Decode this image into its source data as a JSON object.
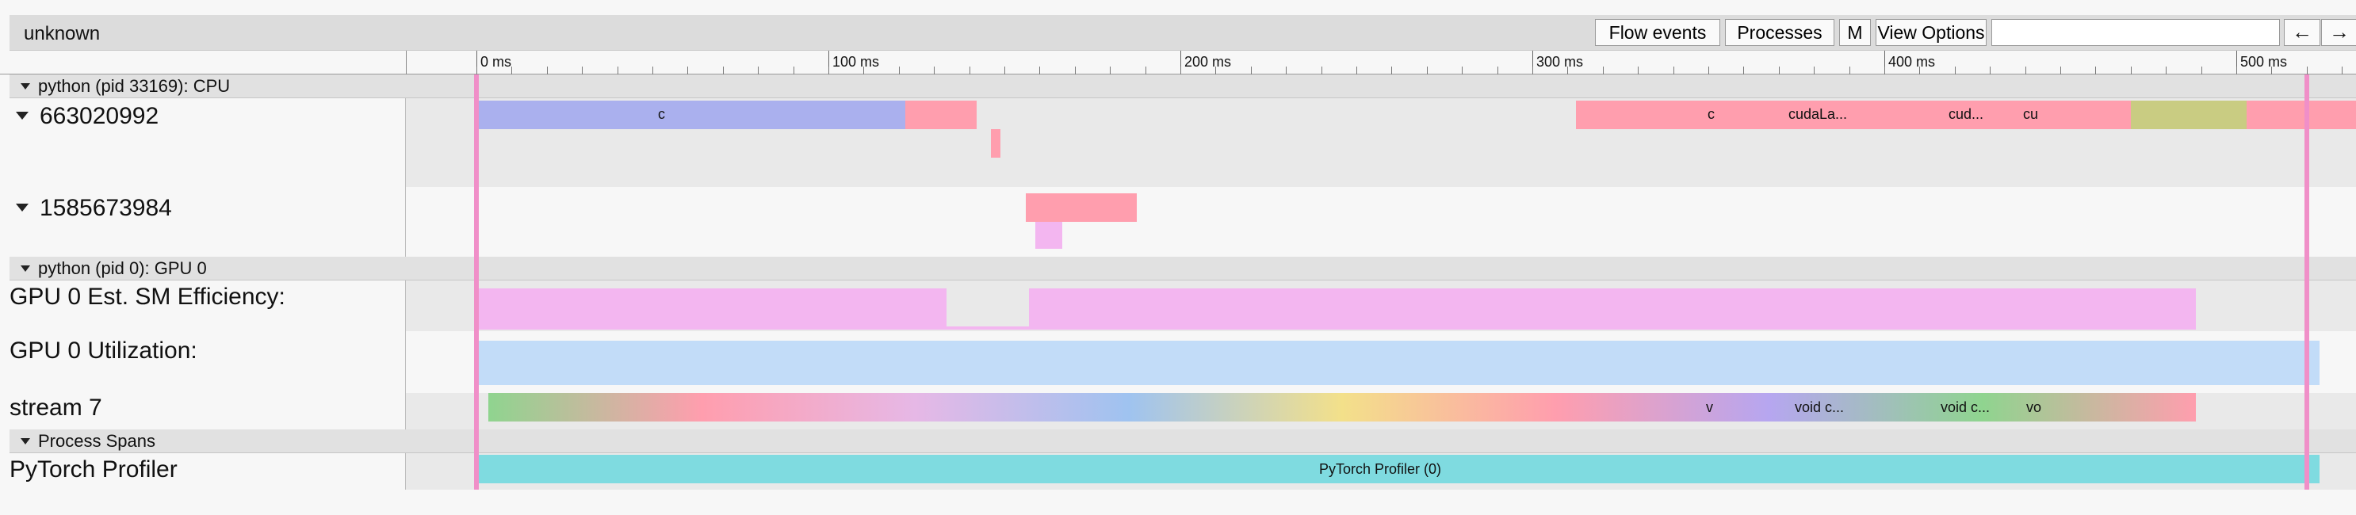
{
  "app": {
    "title": "unknown"
  },
  "toolbar": {
    "flow_events": "Flow events",
    "processes": "Processes",
    "m": "M",
    "view_options": "View Options",
    "search_value": "",
    "prev": "←",
    "next": "→"
  },
  "ruler": {
    "ticks": [
      "0 ms",
      "100 ms",
      "200 ms",
      "300 ms",
      "400 ms",
      "500 ms"
    ]
  },
  "processes": {
    "cpu_header": "python (pid 33169): CPU",
    "gpu_header": "python (pid 0): GPU 0",
    "spans_header": "Process Spans"
  },
  "tracks": {
    "thread1": "663020992",
    "thread2": "1585673984",
    "sm_eff": "GPU 0 Est. SM Efficiency:",
    "util": "GPU 0 Utilization:",
    "stream": "stream 7",
    "profiler": "PyTorch Profiler"
  },
  "slice_labels": {
    "t1_c1": "c",
    "t1_c2": "c",
    "t1_cudala": "cudaLa...",
    "t1_cud": "cud...",
    "t1_cu": "cu",
    "s_v": "v",
    "s_void1": "void c...",
    "s_void2": "void c...",
    "s_vo": "vo",
    "profiler_span": "PyTorch Profiler (0)"
  },
  "colors": {
    "cpu_blue": "#aab0ee",
    "cpu_pink": "#ff9eae",
    "cpu_olive": "#c9cc82",
    "sm_pink": "#f3b6f0",
    "util_blue": "#c2dcf8",
    "marker_pink": "#f08fc8",
    "profiler_teal": "#7fdbe0"
  }
}
